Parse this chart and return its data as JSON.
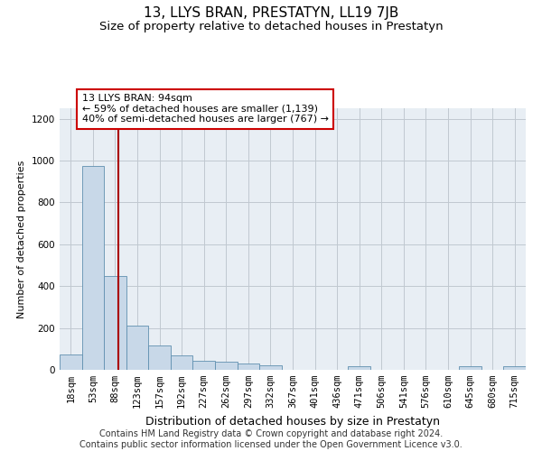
{
  "title": "13, LLYS BRAN, PRESTATYN, LL19 7JB",
  "subtitle": "Size of property relative to detached houses in Prestatyn",
  "xlabel": "Distribution of detached houses by size in Prestatyn",
  "ylabel": "Number of detached properties",
  "footer_line1": "Contains HM Land Registry data © Crown copyright and database right 2024.",
  "footer_line2": "Contains public sector information licensed under the Open Government Licence v3.0.",
  "bin_labels": [
    "18sqm",
    "53sqm",
    "88sqm",
    "123sqm",
    "157sqm",
    "192sqm",
    "227sqm",
    "262sqm",
    "297sqm",
    "332sqm",
    "367sqm",
    "401sqm",
    "436sqm",
    "471sqm",
    "506sqm",
    "541sqm",
    "576sqm",
    "610sqm",
    "645sqm",
    "680sqm",
    "715sqm"
  ],
  "bar_heights": [
    75,
    975,
    450,
    210,
    115,
    68,
    45,
    38,
    30,
    20,
    0,
    0,
    0,
    18,
    0,
    0,
    0,
    0,
    18,
    0,
    18
  ],
  "bar_color": "#c8d8e8",
  "bar_edge_color": "#6090b0",
  "grid_color": "#c0c8d0",
  "background_color": "#e8eef4",
  "property_line_x": 2.15,
  "property_line_color": "#aa0000",
  "annotation_text": "13 LLYS BRAN: 94sqm\n← 59% of detached houses are smaller (1,139)\n40% of semi-detached houses are larger (767) →",
  "annotation_box_color": "#cc0000",
  "ylim": [
    0,
    1250
  ],
  "yticks": [
    0,
    200,
    400,
    600,
    800,
    1000,
    1200
  ],
  "title_fontsize": 11,
  "subtitle_fontsize": 9.5,
  "annotation_fontsize": 8,
  "footer_fontsize": 7,
  "ylabel_fontsize": 8,
  "xlabel_fontsize": 9,
  "tick_fontsize": 7.5
}
